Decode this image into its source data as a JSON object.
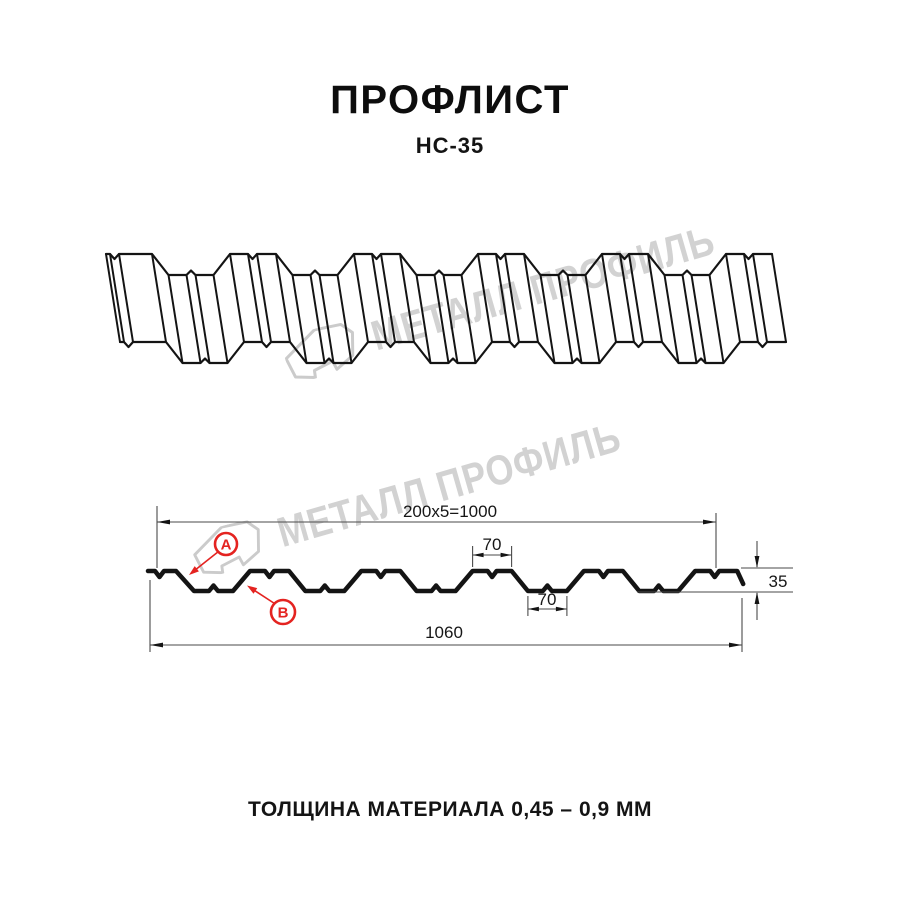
{
  "header": {
    "title": "ПРОФЛИСТ",
    "subtitle": "НС-35"
  },
  "watermark": {
    "text": "МЕТАЛЛ ПРОФИЛЬ",
    "logo_icon": "metall-profil-logo",
    "instances": 2
  },
  "section": {
    "dim_pitch": "200x5=1000",
    "dim_rib_top": "70",
    "dim_rib_bottom": "70",
    "dim_width": "1060",
    "dim_height": "35",
    "marker_a": "A",
    "marker_b": "B"
  },
  "footer": {
    "thickness_note": "ТОЛЩИНА МАТЕРИАЛА 0,45 – 0,9 ММ"
  },
  "colors": {
    "line": "#141414",
    "thin_line": "#4a4a4a",
    "accent_red": "#e42320",
    "watermark": "#d2d2d2",
    "background": "#ffffff"
  }
}
